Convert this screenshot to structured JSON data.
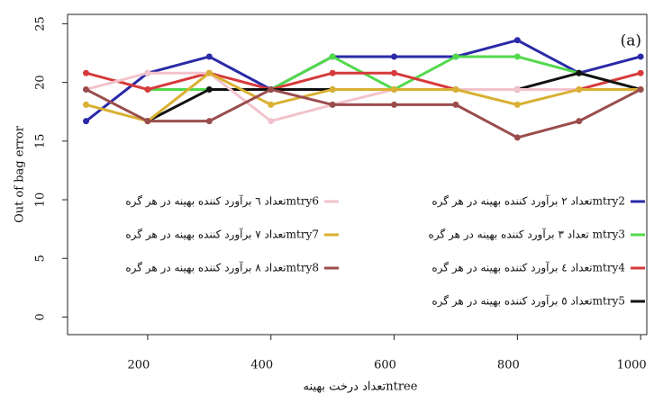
{
  "chart_data": {
    "type": "line",
    "annotation": "(a)",
    "y_label": "Out of bag error",
    "x_label": "تعداد درخت بهینهntree",
    "x": [
      100,
      200,
      300,
      400,
      500,
      600,
      700,
      800,
      900,
      1000
    ],
    "xlim": [
      70,
      1010
    ],
    "xticks": [
      200,
      400,
      600,
      800,
      1000
    ],
    "ylim": [
      -1.5,
      25.8
    ],
    "yticks": [
      0,
      5,
      10,
      15,
      20,
      25
    ],
    "grid": false,
    "series": [
      {
        "name": "تعداد ۲ برآورد کننده بهینه در هر گرهmtry2",
        "color": "#2a2aa8",
        "values": [
          16.7,
          20.8,
          22.2,
          19.4,
          22.2,
          22.2,
          22.2,
          23.6,
          20.8,
          22.2
        ]
      },
      {
        "name": "تعداد ۳ برآورد کننده بهینه در هر گره mtry3",
        "color": "#52d94c",
        "values": [
          null,
          19.4,
          19.4,
          19.4,
          22.2,
          19.4,
          22.2,
          22.2,
          20.8,
          19.4
        ]
      },
      {
        "name": "تعداد ٤ برآورد کننده بهینه در هر گرهmtry4",
        "color": "#d63a3a",
        "values": [
          20.8,
          19.4,
          20.8,
          19.4,
          20.8,
          20.8,
          19.4,
          19.4,
          19.4,
          20.8
        ]
      },
      {
        "name": "تعداد ٥ برآورد کننده بهینه در هر گرهmtry5",
        "color": "#111111",
        "values": [
          null,
          16.7,
          19.4,
          19.4,
          19.4,
          19.4,
          19.4,
          19.4,
          20.8,
          19.4
        ]
      },
      {
        "name": "تعداد ٦ برآورد کننده بهینه در هر گرهmtry6",
        "color": "#f2c3cc",
        "values": [
          19.4,
          20.8,
          20.8,
          16.7,
          18.1,
          19.4,
          19.4,
          19.4,
          19.4,
          19.4
        ]
      },
      {
        "name": "تعداد ۷ برآورد کننده بهینه در هر گرهmtry7",
        "color": "#d9b032",
        "values": [
          18.1,
          16.7,
          20.8,
          18.1,
          19.4,
          19.4,
          19.4,
          18.1,
          19.4,
          19.4
        ]
      },
      {
        "name": "تعداد ٨ برآورد کننده بهینه در هر گرهmtry8",
        "color": "#9a4d4d",
        "values": [
          19.4,
          16.7,
          16.7,
          19.4,
          18.1,
          18.1,
          18.1,
          15.3,
          16.7,
          19.4
        ]
      }
    ]
  }
}
